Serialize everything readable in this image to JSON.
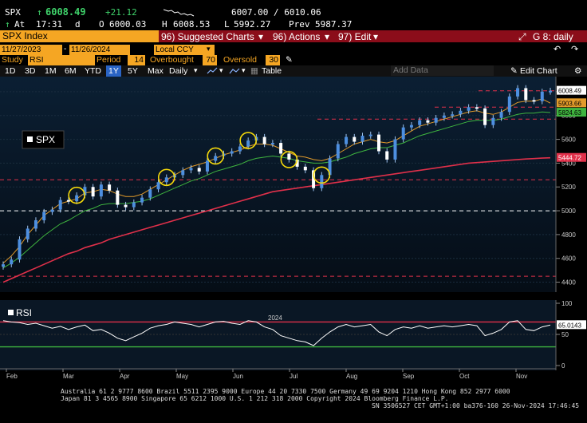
{
  "quote": {
    "ticker": "SPX",
    "last": "6008.49",
    "change": "+21.12",
    "bid_ask": "6007.00 / 6010.06",
    "time_prefix": "At",
    "time": "17:31",
    "time_unit": "d",
    "open_label": "O",
    "open": "6000.03",
    "high_label": "H",
    "high": "6008.53",
    "low_label": "L",
    "low": "5992.27",
    "prev_label": "Prev",
    "prev": "5987.37"
  },
  "titlebar": {
    "index_name": "SPX Index",
    "suggested": "96) Suggested Charts",
    "actions": "96) Actions",
    "edit": "97) Edit",
    "page_code": "G 8: daily",
    "suggested_caret": "▾",
    "actions_caret": "▾",
    "edit_caret": "▾"
  },
  "daterow": {
    "start_date": "11/27/2023",
    "end_date": "11/26/2024",
    "currency": "Local CCY",
    "dash": "-"
  },
  "studyrow": {
    "study_label": "Study",
    "study_value": "RSI",
    "period_label": "Period",
    "period_value": "14",
    "overbought_label": "Overbought",
    "overbought_value": "70",
    "oversold_label": "Oversold",
    "oversold_value": "30"
  },
  "toolbar": {
    "ranges": [
      "1D",
      "3D",
      "1M",
      "6M",
      "YTD",
      "1Y",
      "5Y",
      "Max"
    ],
    "selected_range": "1Y",
    "frequency": "Daily",
    "table_label": "Table",
    "add_data_placeholder": "Add Data",
    "edit_chart": "Edit Chart"
  },
  "chart_data": [
    {
      "type": "line",
      "title": "",
      "legend": "SPX",
      "x_labels": [
        "Feb",
        "Mar",
        "Apr",
        "May",
        "Jun",
        "Jul",
        "Aug",
        "Sep",
        "Oct",
        "Nov"
      ],
      "year_label": "2024",
      "y_ticks": [
        4400,
        4600,
        4800,
        5000,
        5200,
        5400,
        5600,
        5800,
        6000
      ],
      "ylim": [
        4330,
        6100
      ],
      "last_value_labels": {
        "price": "6008.49",
        "ma_orange": "5903.66",
        "ma_green": "5824.63",
        "ma_red": "5444.72"
      },
      "horizontal_levels": [
        6008,
        5870,
        5770,
        5260,
        5000,
        4450
      ],
      "series": [
        {
          "type": "candlestick",
          "color": "#4d8fe0",
          "values": [
            4550,
            4590,
            4760,
            4850,
            4920,
            4990,
            5010,
            5090,
            5080,
            5130,
            5200,
            5120,
            5220,
            5170,
            5050,
            5030,
            5070,
            5110,
            5180,
            5240,
            5280,
            5300,
            5340,
            5360,
            5330,
            5420,
            5460,
            5480,
            5500,
            5540,
            5590,
            5620,
            5560,
            5570,
            5480,
            5430,
            5370,
            5340,
            5190,
            5300,
            5440,
            5560,
            5620,
            5580,
            5630,
            5640,
            5500,
            5430,
            5600,
            5700,
            5720,
            5760,
            5740,
            5780,
            5800,
            5810,
            5840,
            5870,
            5860,
            5720,
            5780,
            5830,
            5960,
            6030,
            5930,
            5920,
            6000,
            6008
          ]
        },
        {
          "name": "",
          "color": "#e39b2a",
          "values": [
            4560,
            4620,
            4700,
            4800,
            4880,
            4960,
            5010,
            5060,
            5080,
            5100,
            5150,
            5160,
            5180,
            5170,
            5140,
            5120,
            5120,
            5140,
            5180,
            5220,
            5260,
            5300,
            5340,
            5370,
            5390,
            5410,
            5440,
            5470,
            5490,
            5510,
            5540,
            5560,
            5560,
            5550,
            5520,
            5490,
            5460,
            5450,
            5430,
            5420,
            5440,
            5480,
            5520,
            5560,
            5580,
            5600,
            5580,
            5570,
            5590,
            5630,
            5670,
            5710,
            5730,
            5750,
            5770,
            5790,
            5810,
            5830,
            5840,
            5820,
            5810,
            5830,
            5870,
            5910,
            5920,
            5920,
            5940,
            5904
          ]
        },
        {
          "name": "",
          "color": "#3fb43f",
          "values": [
            4520,
            4560,
            4610,
            4670,
            4730,
            4790,
            4840,
            4890,
            4920,
            4960,
            5000,
            5020,
            5050,
            5060,
            5060,
            5060,
            5070,
            5080,
            5100,
            5130,
            5160,
            5190,
            5220,
            5250,
            5270,
            5300,
            5330,
            5350,
            5370,
            5390,
            5420,
            5440,
            5450,
            5460,
            5450,
            5440,
            5420,
            5410,
            5400,
            5400,
            5410,
            5430,
            5450,
            5480,
            5500,
            5520,
            5530,
            5530,
            5550,
            5570,
            5600,
            5630,
            5650,
            5670,
            5690,
            5710,
            5730,
            5750,
            5760,
            5760,
            5760,
            5770,
            5790,
            5810,
            5820,
            5820,
            5830,
            5825
          ]
        },
        {
          "name": "",
          "color": "#e0304a",
          "values": [
            4400,
            4430,
            4460,
            4490,
            4520,
            4550,
            4580,
            4610,
            4640,
            4660,
            4690,
            4710,
            4730,
            4760,
            4780,
            4800,
            4820,
            4840,
            4860,
            4880,
            4900,
            4920,
            4940,
            4960,
            4980,
            5000,
            5020,
            5040,
            5060,
            5080,
            5100,
            5120,
            5140,
            5160,
            5170,
            5180,
            5190,
            5200,
            5210,
            5220,
            5230,
            5240,
            5250,
            5260,
            5270,
            5280,
            5290,
            5300,
            5310,
            5320,
            5330,
            5340,
            5350,
            5360,
            5370,
            5380,
            5390,
            5400,
            5405,
            5410,
            5415,
            5420,
            5425,
            5430,
            5435,
            5438,
            5442,
            5445
          ]
        }
      ]
    },
    {
      "type": "line",
      "title": "",
      "legend": "RSI",
      "y_ticks": [
        0,
        50,
        100
      ],
      "ylim": [
        0,
        100
      ],
      "overbought": 70,
      "oversold": 30,
      "last_value_label": "65.0143",
      "series": [
        {
          "name": "",
          "color": "#ffffff",
          "values": [
            72,
            70,
            69,
            66,
            68,
            64,
            60,
            63,
            58,
            62,
            65,
            56,
            58,
            52,
            44,
            40,
            46,
            52,
            60,
            64,
            66,
            70,
            68,
            66,
            62,
            66,
            70,
            71,
            68,
            66,
            72,
            70,
            62,
            58,
            48,
            44,
            40,
            38,
            32,
            44,
            54,
            62,
            66,
            62,
            64,
            66,
            54,
            48,
            58,
            62,
            60,
            64,
            60,
            62,
            64,
            62,
            64,
            66,
            64,
            48,
            52,
            58,
            70,
            72,
            58,
            56,
            62,
            65
          ]
        }
      ]
    }
  ],
  "footer": {
    "line1": "Australia 61 2 9777 8600 Brazil 5511 2395 9000 Europe 44 20 7330 7500 Germany 49 69 9204 1210 Hong Kong 852 2977 6000",
    "line2": "Japan 81 3 4565 8900        Singapore 65 6212 1000       U.S. 1 212 318 2000          Copyright 2024 Bloomberg Finance L.P.",
    "line3": "SN 3506527 CET  GMT+1:00 ba376-160 26-Nov-2024 17:46:45"
  }
}
